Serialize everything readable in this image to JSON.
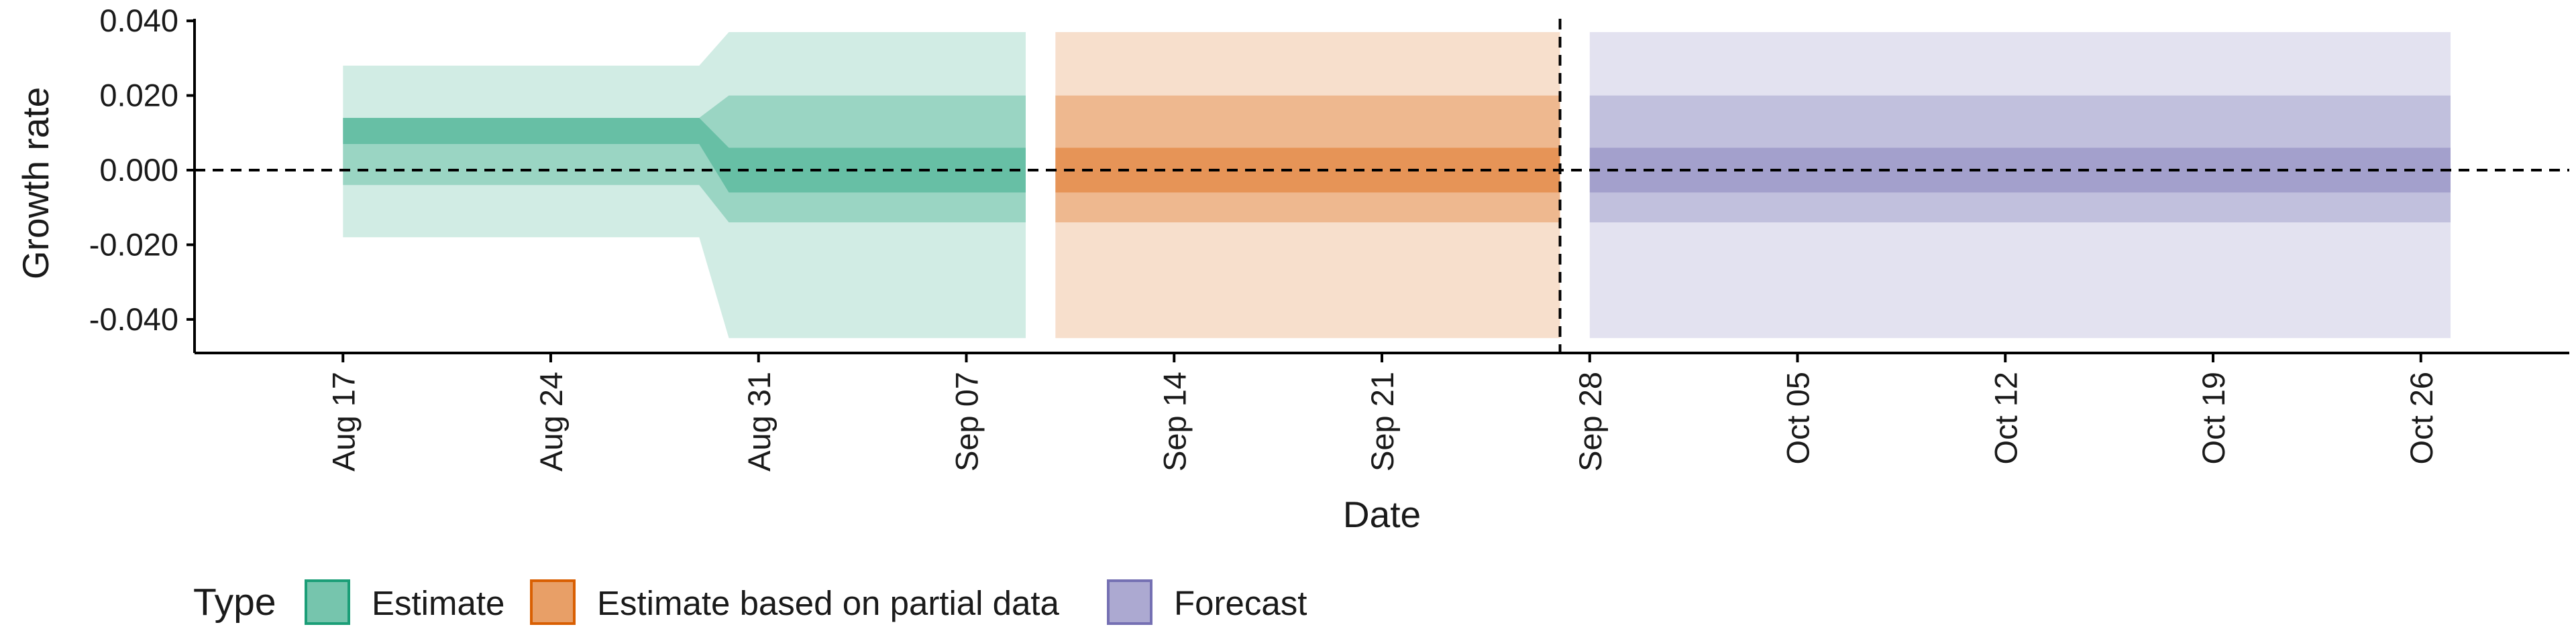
{
  "chart_data": {
    "type": "area",
    "xlabel": "Date",
    "ylabel": "Growth rate",
    "ylim": [
      -0.049,
      0.042
    ],
    "xlim": [
      "2021-08-12",
      "2021-10-31"
    ],
    "yticks": [
      -0.04,
      -0.02,
      0.0,
      0.02,
      0.04
    ],
    "ytick_labels": [
      "-0.040",
      "-0.020",
      "0.000",
      "0.020",
      "0.040"
    ],
    "xticks": [
      "2021-08-17",
      "2021-08-24",
      "2021-08-31",
      "2021-09-07",
      "2021-09-14",
      "2021-09-21",
      "2021-09-28",
      "2021-10-05",
      "2021-10-12",
      "2021-10-19",
      "2021-10-26"
    ],
    "xtick_labels": [
      "Aug 17",
      "Aug 24",
      "Aug 31",
      "Sep 07",
      "Sep 14",
      "Sep 21",
      "Sep 28",
      "Oct 05",
      "Oct 12",
      "Oct 19",
      "Oct 26"
    ],
    "reference_lines": {
      "horizontal_y": 0.0,
      "vertical_x": "2021-09-27"
    },
    "legend": {
      "title": "Type",
      "placement": "bottom-left"
    },
    "series": [
      {
        "name": "Estimate",
        "color": "#1b9e77",
        "x": [
          "2021-08-17",
          "2021-08-29",
          "2021-08-30",
          "2021-09-09"
        ],
        "bands": [
          {
            "lower": [
              -0.018,
              -0.018,
              -0.045,
              -0.045
            ],
            "upper": [
              0.028,
              0.028,
              0.037,
              0.037
            ]
          },
          {
            "lower": [
              -0.004,
              -0.004,
              -0.014,
              -0.014
            ],
            "upper": [
              0.014,
              0.014,
              0.02,
              0.02
            ]
          },
          {
            "lower": [
              0.007,
              0.007,
              -0.006,
              -0.006
            ],
            "upper": [
              0.014,
              0.014,
              0.006,
              0.006
            ]
          }
        ]
      },
      {
        "name": "Estimate based on partial data",
        "color": "#d95f02",
        "x": [
          "2021-09-10",
          "2021-09-27"
        ],
        "bands": [
          {
            "lower": [
              -0.045,
              -0.045
            ],
            "upper": [
              0.037,
              0.037
            ]
          },
          {
            "lower": [
              -0.014,
              -0.014
            ],
            "upper": [
              0.02,
              0.02
            ]
          },
          {
            "lower": [
              -0.006,
              -0.006
            ],
            "upper": [
              0.006,
              0.006
            ]
          }
        ]
      },
      {
        "name": "Forecast",
        "color": "#7570b3",
        "x": [
          "2021-09-28",
          "2021-10-27"
        ],
        "bands": [
          {
            "lower": [
              -0.045,
              -0.045
            ],
            "upper": [
              0.037,
              0.037
            ]
          },
          {
            "lower": [
              -0.014,
              -0.014
            ],
            "upper": [
              0.02,
              0.02
            ]
          },
          {
            "lower": [
              -0.006,
              -0.006
            ],
            "upper": [
              0.006,
              0.006
            ]
          }
        ]
      }
    ]
  }
}
